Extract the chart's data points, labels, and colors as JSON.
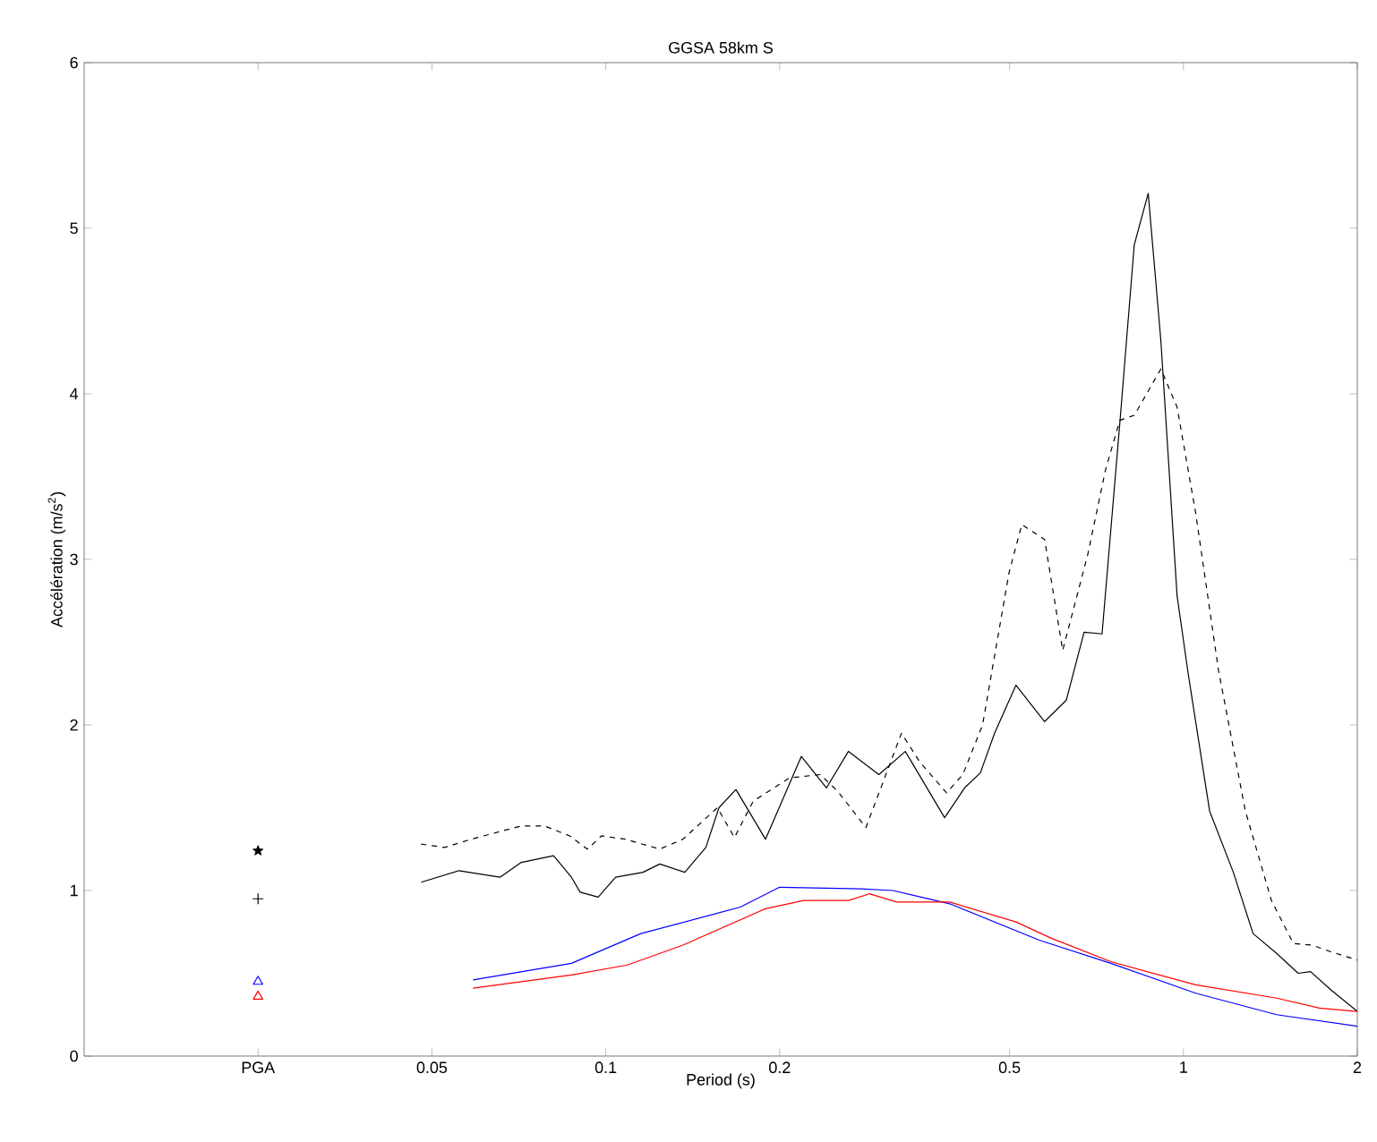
{
  "chart_data": {
    "type": "line",
    "title": "GGSA 58km S",
    "xlabel": "Period (s)",
    "ylabel": "Accélération (m/s$^{2}$)",
    "log": "x",
    "xlim": [
      0.0125,
      2
    ],
    "ylim": [
      0,
      6
    ],
    "xticks": [
      {
        "value": 0.025,
        "label": "PGA"
      },
      0.05,
      0.1,
      0.2,
      0.5,
      1,
      2
    ],
    "yticks": [
      0,
      1,
      2,
      3,
      4,
      5,
      6
    ],
    "series": [
      {
        "color": "#000000",
        "line_style": "solid",
        "marker": "none",
        "x": [
          0.0479,
          0.0557,
          0.0656,
          0.0714,
          0.0812,
          0.0872,
          0.0903,
          0.097,
          0.104,
          0.116,
          0.124,
          0.137,
          0.149,
          0.157,
          0.168,
          0.189,
          0.218,
          0.241,
          0.263,
          0.297,
          0.33,
          0.386,
          0.418,
          0.445,
          0.471,
          0.513,
          0.575,
          0.627,
          0.673,
          0.723,
          0.776,
          0.822,
          0.869,
          0.914,
          0.975,
          1.02,
          1.11,
          1.22,
          1.32,
          1.45,
          1.58,
          1.66,
          1.8,
          2
        ],
        "values": [
          1.05,
          1.12,
          1.08,
          1.17,
          1.21,
          1.08,
          0.99,
          0.96,
          1.08,
          1.11,
          1.16,
          1.11,
          1.26,
          1.5,
          1.61,
          1.31,
          1.81,
          1.62,
          1.84,
          1.7,
          1.84,
          1.44,
          1.62,
          1.71,
          1.95,
          2.24,
          2.02,
          2.15,
          2.56,
          2.55,
          3.82,
          4.9,
          5.21,
          4.32,
          2.78,
          2.3,
          1.48,
          1.11,
          0.74,
          0.62,
          0.5,
          0.51,
          0.4,
          0.27
        ]
      },
      {
        "color": "#000000",
        "line_style": "dashed",
        "marker": "none",
        "x": [
          0.0479,
          0.0526,
          0.0585,
          0.0714,
          0.0783,
          0.0866,
          0.0929,
          0.0983,
          0.108,
          0.124,
          0.136,
          0.156,
          0.167,
          0.18,
          0.208,
          0.235,
          0.252,
          0.282,
          0.325,
          0.349,
          0.389,
          0.415,
          0.449,
          0.499,
          0.525,
          0.575,
          0.618,
          0.683,
          0.733,
          0.776,
          0.822,
          0.914,
          0.975,
          1.05,
          1.15,
          1.28,
          1.42,
          1.55,
          1.67,
          1.8,
          2
        ],
        "values": [
          1.28,
          1.26,
          1.31,
          1.39,
          1.39,
          1.33,
          1.25,
          1.33,
          1.31,
          1.25,
          1.31,
          1.5,
          1.32,
          1.54,
          1.68,
          1.7,
          1.6,
          1.38,
          1.95,
          1.78,
          1.59,
          1.7,
          2.0,
          2.92,
          3.21,
          3.12,
          2.45,
          3.03,
          3.54,
          3.84,
          3.87,
          4.15,
          3.92,
          3.28,
          2.33,
          1.48,
          0.94,
          0.68,
          0.67,
          0.63,
          0.58
        ]
      },
      {
        "color": "#0000ff",
        "line_style": "solid",
        "marker": "none",
        "x": [
          0.0589,
          0.0872,
          0.115,
          0.171,
          0.2,
          0.276,
          0.314,
          0.394,
          0.563,
          0.749,
          1.05,
          1.45,
          2
        ],
        "values": [
          0.46,
          0.56,
          0.74,
          0.9,
          1.02,
          1.01,
          1.0,
          0.92,
          0.7,
          0.56,
          0.38,
          0.25,
          0.18
        ]
      },
      {
        "color": "#ff0000",
        "line_style": "solid",
        "marker": "none",
        "x": [
          0.0589,
          0.0872,
          0.109,
          0.136,
          0.189,
          0.22,
          0.263,
          0.286,
          0.319,
          0.394,
          0.513,
          0.592,
          0.749,
          1.05,
          1.45,
          1.72,
          2
        ],
        "values": [
          0.41,
          0.49,
          0.55,
          0.67,
          0.89,
          0.94,
          0.94,
          0.98,
          0.93,
          0.93,
          0.81,
          0.71,
          0.57,
          0.43,
          0.35,
          0.29,
          0.27
        ]
      },
      {
        "type": "scatter",
        "color": "#000000",
        "marker": "star",
        "x": [
          0.025
        ],
        "values": [
          1.24
        ]
      },
      {
        "type": "scatter",
        "color": "#000000",
        "marker": "cross",
        "x": [
          0.025
        ],
        "values": [
          0.95
        ]
      },
      {
        "type": "scatter",
        "color": "#0000ff",
        "marker": "triangle",
        "x": [
          0.025
        ],
        "values": [
          0.45
        ]
      },
      {
        "type": "scatter",
        "color": "#ff0000",
        "marker": "triangle",
        "x": [
          0.025
        ],
        "values": [
          0.36
        ]
      }
    ]
  }
}
